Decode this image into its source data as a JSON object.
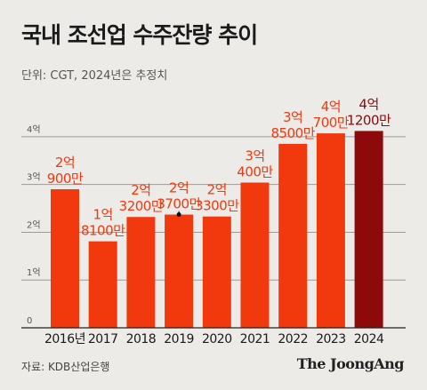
{
  "header": {
    "title": "국내 조선업 수주잔량 추이",
    "subtitle": "단위: CGT, 2024년은 추정치"
  },
  "footer": {
    "source": "자료: KDB산업은행",
    "brand": "The JoongAng"
  },
  "chart_data": {
    "type": "bar",
    "title": "국내 조선업 수주잔량 추이",
    "unit": "CGT",
    "categories": [
      "2016년",
      "2017",
      "2018",
      "2019",
      "2020",
      "2021",
      "2022",
      "2023",
      "2024"
    ],
    "values": [
      29000000,
      18100000,
      23200000,
      23700000,
      23300000,
      30400000,
      38500000,
      40700000,
      41200000
    ],
    "data_labels": [
      [
        "2억",
        "900만"
      ],
      [
        "1억",
        "8100만"
      ],
      [
        "2억",
        "3200만"
      ],
      [
        "2억",
        "3700만"
      ],
      [
        "2억",
        "3300만"
      ],
      [
        "3억",
        "400만"
      ],
      [
        "3억",
        "8500만"
      ],
      [
        "4억",
        "700만"
      ],
      [
        "4억",
        "1200만"
      ]
    ],
    "yticks": [
      0,
      10000000,
      20000000,
      30000000,
      40000000
    ],
    "ytick_labels": [
      "0",
      "1억",
      "2억",
      "3억",
      "4억"
    ],
    "ylim": [
      0,
      45000000
    ],
    "grid": true,
    "colors": {
      "bar": "#f2380d",
      "highlight_bar": "#8e0a0a",
      "label": "#f2380d",
      "highlight_label": "#8e0a0a",
      "grid": "#9a9a9a"
    },
    "highlight_index": 8,
    "annotated_index": 3
  }
}
